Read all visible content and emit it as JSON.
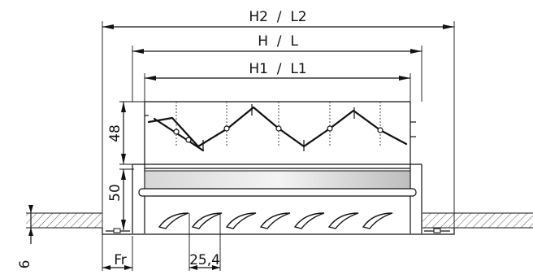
{
  "dimensions": {
    "h2_l2": "H2  /  L2",
    "h_l": "H  /  L",
    "h1_l1": "H1  /  L1",
    "height_48": "48",
    "height_50": "50",
    "offset_6": "6",
    "fr": "Fr",
    "pitch": "25,4"
  },
  "colors": {
    "line": "#111111",
    "hatch": "#555555",
    "bar_light": "#eeeeee",
    "bar_dark": "#bbbbbb"
  }
}
